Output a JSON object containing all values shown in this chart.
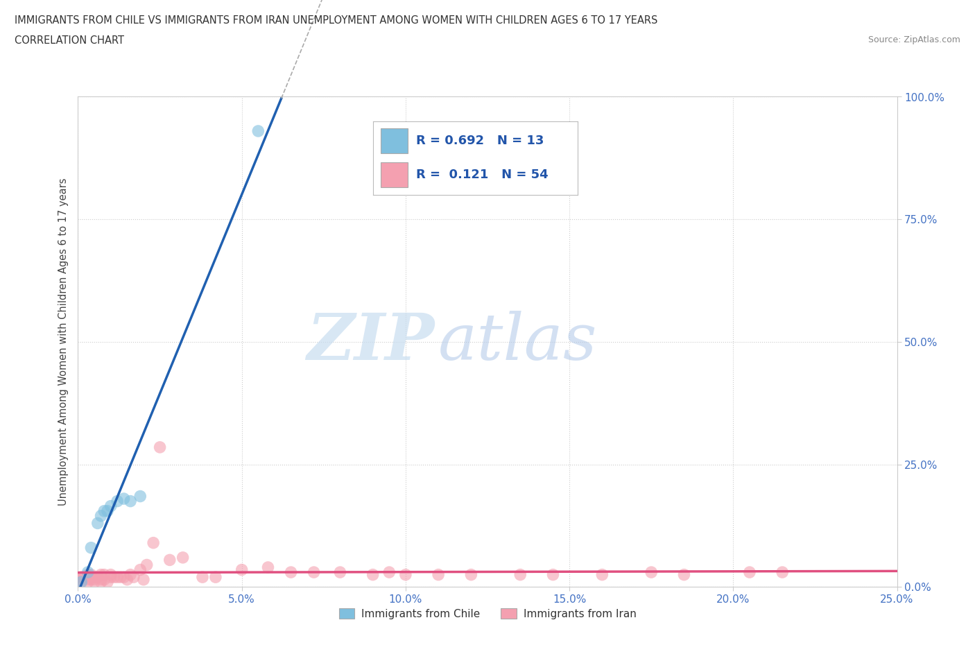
{
  "title_line1": "IMMIGRANTS FROM CHILE VS IMMIGRANTS FROM IRAN UNEMPLOYMENT AMONG WOMEN WITH CHILDREN AGES 6 TO 17 YEARS",
  "title_line2": "CORRELATION CHART",
  "source": "Source: ZipAtlas.com",
  "ylabel": "Unemployment Among Women with Children Ages 6 to 17 years",
  "xlim": [
    0.0,
    0.25
  ],
  "ylim": [
    0.0,
    1.0
  ],
  "xtick_labels": [
    "0.0%",
    "5.0%",
    "10.0%",
    "15.0%",
    "20.0%",
    "25.0%"
  ],
  "xtick_values": [
    0.0,
    0.05,
    0.1,
    0.15,
    0.2,
    0.25
  ],
  "ytick_labels": [
    "100.0%",
    "75.0%",
    "50.0%",
    "25.0%",
    "0.0%"
  ],
  "ytick_values": [
    1.0,
    0.75,
    0.5,
    0.25,
    0.0
  ],
  "chile_color": "#7fbfde",
  "iran_color": "#f4a0b0",
  "chile_line_color": "#2060b0",
  "iran_line_color": "#e05080",
  "chile_R": 0.692,
  "chile_N": 13,
  "iran_R": 0.121,
  "iran_N": 54,
  "watermark_zip": "ZIP",
  "watermark_atlas": "atlas",
  "chile_scatter_x": [
    0.001,
    0.003,
    0.004,
    0.006,
    0.007,
    0.008,
    0.009,
    0.01,
    0.012,
    0.014,
    0.016,
    0.019,
    0.055
  ],
  "chile_scatter_y": [
    0.01,
    0.03,
    0.08,
    0.13,
    0.145,
    0.155,
    0.155,
    0.165,
    0.175,
    0.18,
    0.175,
    0.185,
    0.93
  ],
  "iran_scatter_x": [
    0.0,
    0.001,
    0.001,
    0.002,
    0.003,
    0.003,
    0.004,
    0.004,
    0.005,
    0.005,
    0.006,
    0.007,
    0.007,
    0.008,
    0.008,
    0.009,
    0.01,
    0.01,
    0.011,
    0.012,
    0.013,
    0.014,
    0.015,
    0.016,
    0.017,
    0.019,
    0.021,
    0.023,
    0.025,
    0.028,
    0.032,
    0.038,
    0.042,
    0.05,
    0.058,
    0.065,
    0.072,
    0.08,
    0.09,
    0.095,
    0.1,
    0.11,
    0.12,
    0.135,
    0.145,
    0.16,
    0.175,
    0.185,
    0.205,
    0.215,
    0.003,
    0.005,
    0.007,
    0.02
  ],
  "iran_scatter_y": [
    0.015,
    0.01,
    0.02,
    0.02,
    0.015,
    0.025,
    0.015,
    0.025,
    0.01,
    0.02,
    0.02,
    0.015,
    0.025,
    0.015,
    0.025,
    0.01,
    0.02,
    0.025,
    0.02,
    0.02,
    0.02,
    0.02,
    0.015,
    0.025,
    0.02,
    0.035,
    0.045,
    0.09,
    0.285,
    0.055,
    0.06,
    0.02,
    0.02,
    0.035,
    0.04,
    0.03,
    0.03,
    0.03,
    0.025,
    0.03,
    0.025,
    0.025,
    0.025,
    0.025,
    0.025,
    0.025,
    0.03,
    0.025,
    0.03,
    0.03,
    0.01,
    0.015,
    0.01,
    0.015
  ],
  "background_color": "#ffffff",
  "grid_color": "#cccccc"
}
